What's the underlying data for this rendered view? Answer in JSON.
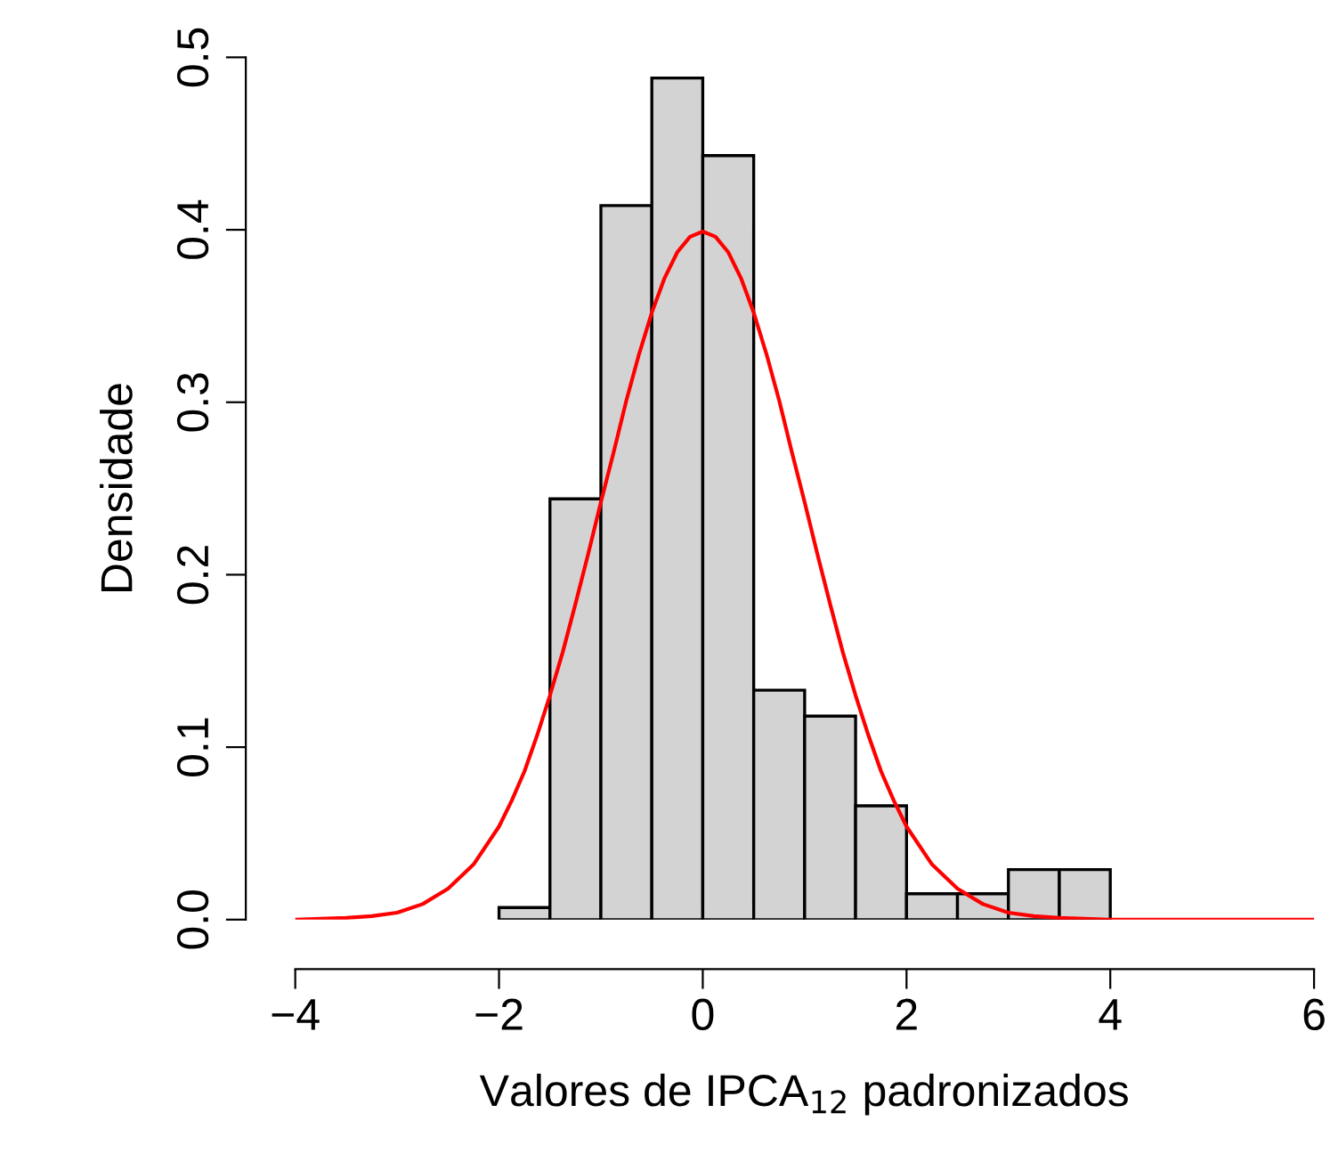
{
  "chart_data": {
    "type": "histogram",
    "xlabel": "Valores de IPCA$_{12}$ padronizados",
    "ylabel": "Densidade",
    "series": [
      {
        "color": "#d3d3d3",
        "bins": [
          -2,
          -1.5,
          -1,
          -0.5,
          0,
          0.5,
          1,
          1.5,
          2,
          2.5,
          3,
          3.5,
          4
        ],
        "values": [
          0.007,
          0.244,
          0.414,
          0.488,
          0.443,
          0.133,
          0.118,
          0.066,
          0.015,
          0.015,
          0.029,
          0.029
        ]
      },
      {
        "type": "line",
        "color": "#ff0000",
        "x": [
          -4,
          -3.5,
          -3.25,
          -3,
          -2.75,
          -2.5,
          -2.25,
          -2,
          -1.875,
          -1.75,
          -1.625,
          -1.5,
          -1.375,
          -1.25,
          -1.125,
          -1,
          -0.875,
          -0.75,
          -0.625,
          -0.5,
          -0.375,
          -0.25,
          -0.125,
          0,
          0.125,
          0.25,
          0.375,
          0.5,
          0.625,
          0.75,
          0.875,
          1,
          1.125,
          1.25,
          1.375,
          1.5,
          1.625,
          1.75,
          1.875,
          2,
          2.25,
          2.5,
          2.75,
          3,
          3.25,
          3.5,
          4,
          5,
          6
        ],
        "values": [
          0.0,
          0.001,
          0.002,
          0.004,
          0.009,
          0.018,
          0.032,
          0.054,
          0.069,
          0.086,
          0.107,
          0.13,
          0.155,
          0.183,
          0.212,
          0.242,
          0.271,
          0.301,
          0.328,
          0.352,
          0.372,
          0.387,
          0.396,
          0.399,
          0.396,
          0.387,
          0.372,
          0.352,
          0.328,
          0.301,
          0.271,
          0.242,
          0.212,
          0.183,
          0.155,
          0.13,
          0.107,
          0.086,
          0.069,
          0.054,
          0.032,
          0.018,
          0.009,
          0.004,
          0.002,
          0.001,
          0.0,
          0.0,
          0.0
        ]
      }
    ],
    "xlim": [
      -4,
      6
    ],
    "ylim": [
      0,
      0.5
    ],
    "xticks": [
      {
        "value": -4,
        "label": "−4"
      },
      {
        "value": -2,
        "label": "−2"
      },
      0,
      2,
      4,
      6
    ],
    "yticks": [
      {
        "value": 0,
        "label": "0.0"
      },
      0.1,
      0.2,
      0.3,
      0.4,
      0.5
    ],
    "marker": "none",
    "line_style": "solid"
  }
}
